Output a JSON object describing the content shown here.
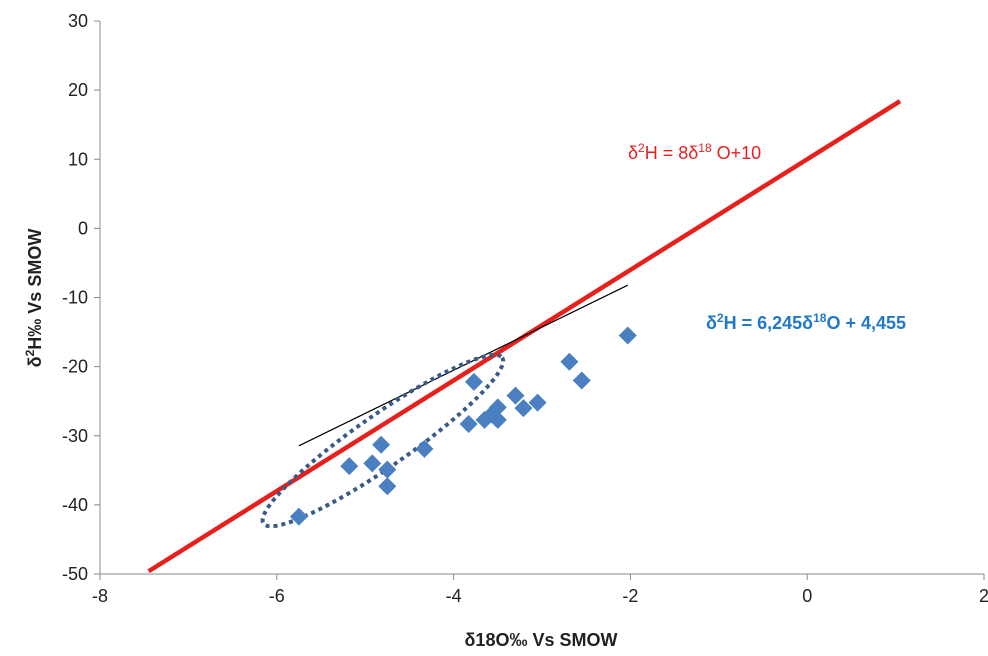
{
  "chart_data": {
    "type": "scatter",
    "xlabel": "δ18O‰ Vs SMOW",
    "ylabel_parts": [
      "δ",
      "2",
      "H‰ Vs SMOW"
    ],
    "xlim": [
      -8,
      2
    ],
    "ylim": [
      -50,
      30
    ],
    "xticks": [
      -8,
      -6,
      -4,
      -2,
      0,
      2
    ],
    "yticks": [
      -50,
      -40,
      -30,
      -20,
      -10,
      0,
      10,
      20,
      30
    ],
    "grid": false,
    "colors": {
      "points": "#4a7fc1",
      "gmwl": "#e8201d",
      "fit": "#000000",
      "ellipse": "#3a5a8a",
      "fit_label": "#1f78c8"
    },
    "points": [
      {
        "x": -5.75,
        "y": -41.7
      },
      {
        "x": -5.18,
        "y": -34.4
      },
      {
        "x": -4.92,
        "y": -34.0
      },
      {
        "x": -4.82,
        "y": -31.3
      },
      {
        "x": -4.75,
        "y": -34.9
      },
      {
        "x": -4.75,
        "y": -37.3
      },
      {
        "x": -4.33,
        "y": -31.9
      },
      {
        "x": -3.83,
        "y": -28.3
      },
      {
        "x": -3.77,
        "y": -22.2
      },
      {
        "x": -3.65,
        "y": -27.7
      },
      {
        "x": -3.57,
        "y": -26.9
      },
      {
        "x": -3.5,
        "y": -27.7
      },
      {
        "x": -3.5,
        "y": -25.9
      },
      {
        "x": -3.3,
        "y": -24.2
      },
      {
        "x": -3.21,
        "y": -26.0
      },
      {
        "x": -3.05,
        "y": -25.2
      },
      {
        "x": -2.69,
        "y": -19.3
      },
      {
        "x": -2.55,
        "y": -22.0
      },
      {
        "x": -2.03,
        "y": -15.5
      }
    ],
    "lines": [
      {
        "name": "gmwl",
        "slope": 8,
        "intercept": 10,
        "x_range": [
          -7.45,
          1.05
        ]
      },
      {
        "name": "fit",
        "slope": 6.245,
        "intercept": 4.455,
        "x_range": [
          -5.75,
          -2.03
        ]
      }
    ],
    "ellipse": {
      "center": [
        -4.85,
        -30.5
      ],
      "endpoints": [
        [
          -6.15,
          -42.7
        ],
        [
          -3.45,
          -18.7
        ]
      ],
      "half_width": 1.5
    },
    "annotations": {
      "gmwl_label": {
        "a": "δ",
        "b": "2",
        "c": "H  = 8δ",
        "d": "18",
        "e": " O+10"
      },
      "fit_label": {
        "a": "δ",
        "b": "2",
        "c": "H = 6,245δ",
        "d": "18",
        "e": "O + 4,455"
      }
    }
  }
}
